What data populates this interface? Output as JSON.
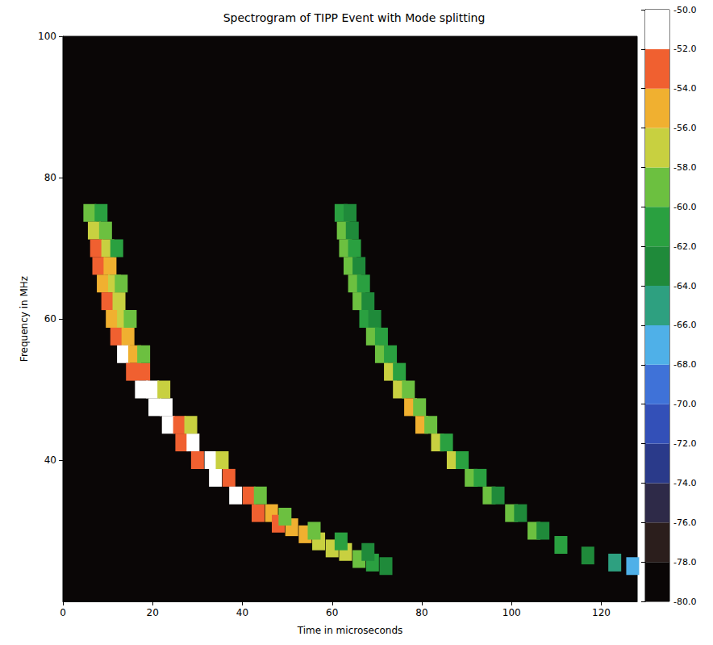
{
  "chart_data": {
    "type": "heatmap",
    "title": "Spectrogram of TIPP Event with Mode splitting",
    "x_label": "Time in microseconds",
    "y_label": "Frequency in MHz",
    "xlim": [
      0,
      128
    ],
    "xticks": [
      0,
      20,
      40,
      60,
      80,
      100,
      120
    ],
    "ylim": [
      20,
      100
    ],
    "yticks": [
      40,
      60,
      80,
      100
    ],
    "cells": [
      [
        6,
        75,
        -60
      ],
      [
        8.5,
        75,
        -62
      ],
      [
        7,
        72.5,
        -58
      ],
      [
        9.5,
        72.5,
        -60
      ],
      [
        7.5,
        70,
        -54
      ],
      [
        10,
        70,
        -58
      ],
      [
        8,
        67.5,
        -54
      ],
      [
        10.5,
        67.5,
        -56
      ],
      [
        9,
        65,
        -56
      ],
      [
        11.5,
        65,
        -58
      ],
      [
        10,
        62.5,
        -54
      ],
      [
        12.5,
        62.5,
        -58
      ],
      [
        11,
        60,
        -56
      ],
      [
        13.5,
        60,
        -58
      ],
      [
        12,
        57.5,
        -54
      ],
      [
        14.5,
        57.5,
        -56
      ],
      [
        13.5,
        55,
        -52
      ],
      [
        16,
        55,
        -56
      ],
      [
        15.5,
        52.5,
        -54
      ],
      [
        18,
        52.5,
        -54
      ],
      [
        17.5,
        50,
        -52
      ],
      [
        20,
        50,
        -50
      ],
      [
        20.5,
        47.5,
        -52
      ],
      [
        23,
        47.5,
        -52
      ],
      [
        23.5,
        45,
        -52
      ],
      [
        26,
        45,
        -54
      ],
      [
        26.5,
        42.5,
        -54
      ],
      [
        29,
        42.5,
        -52
      ],
      [
        30,
        40,
        -54
      ],
      [
        33,
        40,
        -52
      ],
      [
        34,
        37.5,
        -52
      ],
      [
        37,
        37.5,
        -54
      ],
      [
        38.5,
        35,
        -52
      ],
      [
        41.5,
        35,
        -54
      ],
      [
        43.5,
        32.5,
        -54
      ],
      [
        46.5,
        32.5,
        -56
      ],
      [
        48,
        31,
        -54
      ],
      [
        51,
        30.5,
        -56
      ],
      [
        54,
        29.5,
        -56
      ],
      [
        57,
        28.5,
        -58
      ],
      [
        60,
        27.5,
        -58
      ],
      [
        63,
        27,
        -58
      ],
      [
        66,
        26,
        -60
      ],
      [
        69,
        25.5,
        -62
      ],
      [
        72,
        25,
        -64
      ],
      [
        12,
        70,
        -62
      ],
      [
        13,
        65,
        -60
      ],
      [
        15,
        60,
        -60
      ],
      [
        18,
        55,
        -60
      ],
      [
        22.5,
        50,
        -58
      ],
      [
        28.5,
        45,
        -58
      ],
      [
        35.5,
        40,
        -58
      ],
      [
        44,
        35,
        -60
      ],
      [
        49.5,
        32,
        -60
      ],
      [
        56,
        30,
        -60
      ],
      [
        62,
        28.5,
        -62
      ],
      [
        68,
        27,
        -64
      ],
      [
        62,
        75,
        -62
      ],
      [
        64,
        75,
        -64
      ],
      [
        62.5,
        72.5,
        -60
      ],
      [
        64.5,
        72.5,
        -64
      ],
      [
        63,
        70,
        -60
      ],
      [
        65,
        70,
        -62
      ],
      [
        64,
        67.5,
        -60
      ],
      [
        66,
        67.5,
        -64
      ],
      [
        65,
        65,
        -60
      ],
      [
        67,
        65,
        -62
      ],
      [
        66,
        62.5,
        -60
      ],
      [
        68,
        62.5,
        -64
      ],
      [
        67.5,
        60,
        -62
      ],
      [
        69.5,
        60,
        -64
      ],
      [
        69,
        57.5,
        -60
      ],
      [
        71,
        57.5,
        -62
      ],
      [
        71,
        55,
        -60
      ],
      [
        73,
        55,
        -62
      ],
      [
        73,
        52.5,
        -58
      ],
      [
        75,
        52.5,
        -62
      ],
      [
        75,
        50,
        -58
      ],
      [
        77,
        50,
        -60
      ],
      [
        77.5,
        47.5,
        -56
      ],
      [
        79.5,
        47.5,
        -60
      ],
      [
        80,
        45,
        -56
      ],
      [
        82,
        45,
        -60
      ],
      [
        83.5,
        42.5,
        -58
      ],
      [
        85.5,
        42.5,
        -62
      ],
      [
        87,
        40,
        -58
      ],
      [
        89,
        40,
        -62
      ],
      [
        91,
        37.5,
        -60
      ],
      [
        93,
        37.5,
        -62
      ],
      [
        95,
        35,
        -60
      ],
      [
        97,
        35,
        -64
      ],
      [
        100,
        32.5,
        -60
      ],
      [
        102,
        32.5,
        -64
      ],
      [
        105,
        30,
        -60
      ],
      [
        107,
        30,
        -64
      ],
      [
        111,
        28,
        -62
      ],
      [
        117,
        26.5,
        -64
      ],
      [
        123,
        25.5,
        -66
      ],
      [
        127,
        25,
        -68
      ]
    ],
    "colorbar": {
      "range": [
        -80,
        -50
      ],
      "ticks": [
        {
          "value": -80,
          "label": "-80.0"
        },
        {
          "value": -78,
          "label": "-78.0"
        },
        {
          "value": -76,
          "label": "-76.0"
        },
        {
          "value": -74,
          "label": "-74.0"
        },
        {
          "value": -72,
          "label": "-72.0"
        },
        {
          "value": -70,
          "label": "-70.0"
        },
        {
          "value": -68,
          "label": "-68.0"
        },
        {
          "value": -66,
          "label": "-66.0"
        },
        {
          "value": -64,
          "label": "-64.0"
        },
        {
          "value": -62,
          "label": "-62.0"
        },
        {
          "value": -60,
          "label": "-60.0"
        },
        {
          "value": -58,
          "label": "-58.0"
        },
        {
          "value": -56,
          "label": "-56.0"
        },
        {
          "value": -54,
          "label": "-54.0"
        },
        {
          "value": -52,
          "label": "-52.0"
        },
        {
          "value": -50,
          "label": "-50.0"
        }
      ]
    }
  }
}
